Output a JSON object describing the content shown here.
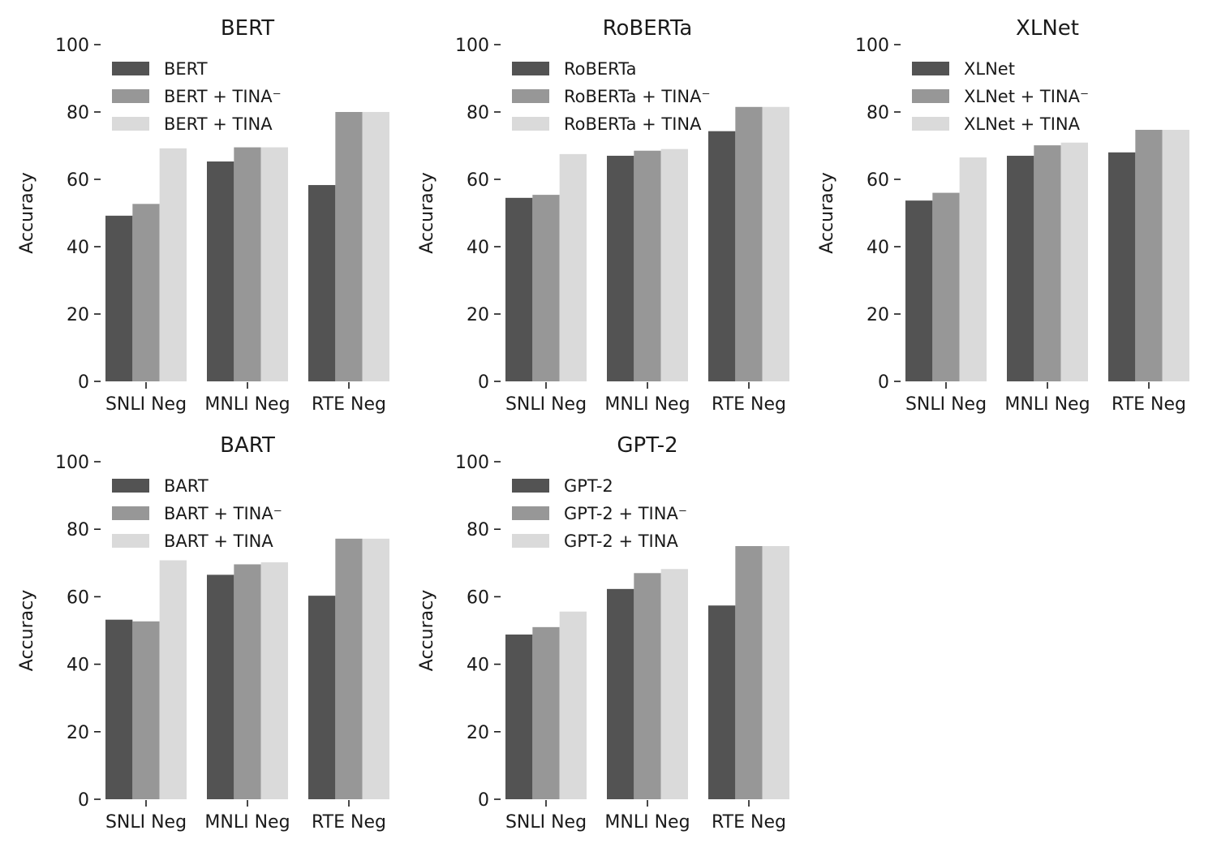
{
  "colors": {
    "base": "#535353",
    "tina_minus": "#979797",
    "tina": "#dadada",
    "axis": "#1a1a1a"
  },
  "chart_data": [
    {
      "type": "bar",
      "title": "BERT",
      "ylabel": "Accuracy",
      "xlabel": "",
      "ylim": [
        0,
        100
      ],
      "yticks": [
        "0",
        "20",
        "40",
        "60",
        "80",
        "100"
      ],
      "categories": [
        "SNLI Neg",
        "MNLI Neg",
        "RTE Neg"
      ],
      "legend_position": "upper-left",
      "series": [
        {
          "name": "BERT",
          "values": [
            49.2,
            65.3,
            58.3
          ]
        },
        {
          "name": "BERT + TINA⁻",
          "values": [
            52.7,
            69.5,
            80.0
          ]
        },
        {
          "name": "BERT + TINA",
          "values": [
            69.2,
            69.5,
            80.0
          ]
        }
      ]
    },
    {
      "type": "bar",
      "title": "RoBERTa",
      "ylabel": "Accuracy",
      "xlabel": "",
      "ylim": [
        0,
        100
      ],
      "yticks": [
        "0",
        "20",
        "40",
        "60",
        "80",
        "100"
      ],
      "categories": [
        "SNLI Neg",
        "MNLI Neg",
        "RTE Neg"
      ],
      "legend_position": "upper-left",
      "series": [
        {
          "name": "RoBERTa",
          "values": [
            54.5,
            67.0,
            74.3
          ]
        },
        {
          "name": "RoBERTa + TINA⁻",
          "values": [
            55.4,
            68.5,
            81.5
          ]
        },
        {
          "name": "RoBERTa + TINA",
          "values": [
            67.5,
            69.0,
            81.5
          ]
        }
      ]
    },
    {
      "type": "bar",
      "title": "XLNet",
      "ylabel": "Accuracy",
      "xlabel": "",
      "ylim": [
        0,
        100
      ],
      "yticks": [
        "0",
        "20",
        "40",
        "60",
        "80",
        "100"
      ],
      "categories": [
        "SNLI Neg",
        "MNLI Neg",
        "RTE Neg"
      ],
      "legend_position": "upper-left",
      "series": [
        {
          "name": "XLNet",
          "values": [
            53.7,
            67.0,
            68.0
          ]
        },
        {
          "name": "XLNet + TINA⁻",
          "values": [
            56.0,
            70.1,
            74.7
          ]
        },
        {
          "name": "XLNet + TINA",
          "values": [
            66.5,
            70.9,
            74.7
          ]
        }
      ]
    },
    {
      "type": "bar",
      "title": "BART",
      "ylabel": "Accuracy",
      "xlabel": "",
      "ylim": [
        0,
        100
      ],
      "yticks": [
        "0",
        "20",
        "40",
        "60",
        "80",
        "100"
      ],
      "categories": [
        "SNLI Neg",
        "MNLI Neg",
        "RTE Neg"
      ],
      "legend_position": "upper-left",
      "series": [
        {
          "name": "BART",
          "values": [
            53.2,
            66.5,
            60.3
          ]
        },
        {
          "name": "BART + TINA⁻",
          "values": [
            52.7,
            69.6,
            77.2
          ]
        },
        {
          "name": "BART + TINA",
          "values": [
            70.8,
            70.2,
            77.2
          ]
        }
      ]
    },
    {
      "type": "bar",
      "title": "GPT-2",
      "ylabel": "Accuracy",
      "xlabel": "",
      "ylim": [
        0,
        100
      ],
      "yticks": [
        "0",
        "20",
        "40",
        "60",
        "80",
        "100"
      ],
      "categories": [
        "SNLI Neg",
        "MNLI Neg",
        "RTE Neg"
      ],
      "legend_position": "upper-left",
      "series": [
        {
          "name": "GPT-2",
          "values": [
            48.8,
            62.3,
            57.4
          ]
        },
        {
          "name": "GPT-2 + TINA⁻",
          "values": [
            51.0,
            67.0,
            75.0
          ]
        },
        {
          "name": "GPT-2 + TINA",
          "values": [
            55.6,
            68.2,
            75.0
          ]
        }
      ]
    }
  ]
}
